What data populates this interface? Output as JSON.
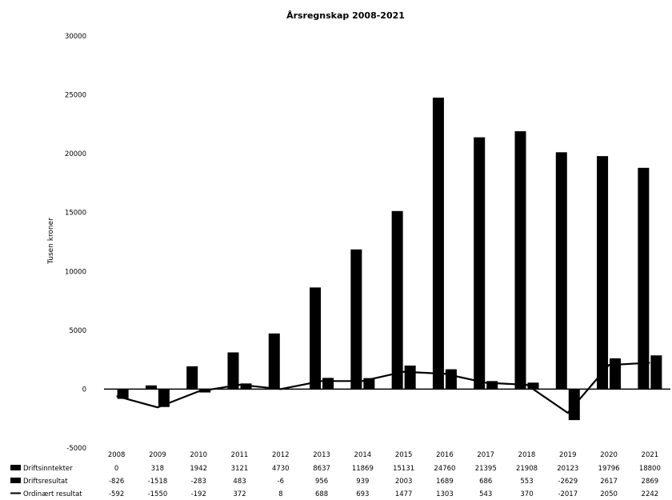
{
  "chart_data": {
    "type": "bar",
    "title": "Årsregnskap 2008-2021",
    "ylabel": "Tusen kroner",
    "ylim": [
      -5000,
      30000
    ],
    "yticks": [
      -5000,
      0,
      5000,
      10000,
      15000,
      20000,
      25000,
      30000
    ],
    "categories": [
      "2008",
      "2009",
      "2010",
      "2011",
      "2012",
      "2013",
      "2014",
      "2015",
      "2016",
      "2017",
      "2018",
      "2019",
      "2020",
      "2021"
    ],
    "series": [
      {
        "name": "Driftsinntekter",
        "kind": "bar",
        "values": [
          0,
          318,
          1942,
          3121,
          4730,
          8637,
          11869,
          15131,
          24760,
          21395,
          21908,
          20123,
          19796,
          18800
        ]
      },
      {
        "name": "Driftsresultat",
        "kind": "bar",
        "values": [
          -826,
          -1518,
          -283,
          483,
          -6,
          956,
          939,
          2003,
          1689,
          686,
          553,
          -2629,
          2617,
          2869
        ]
      },
      {
        "name": "Ordinært resultat",
        "kind": "line",
        "values": [
          -592,
          -1550,
          -192,
          372,
          8,
          688,
          693,
          1477,
          1303,
          543,
          370,
          -2017,
          2050,
          2242
        ]
      }
    ],
    "grid": false,
    "legend": "data-table"
  }
}
